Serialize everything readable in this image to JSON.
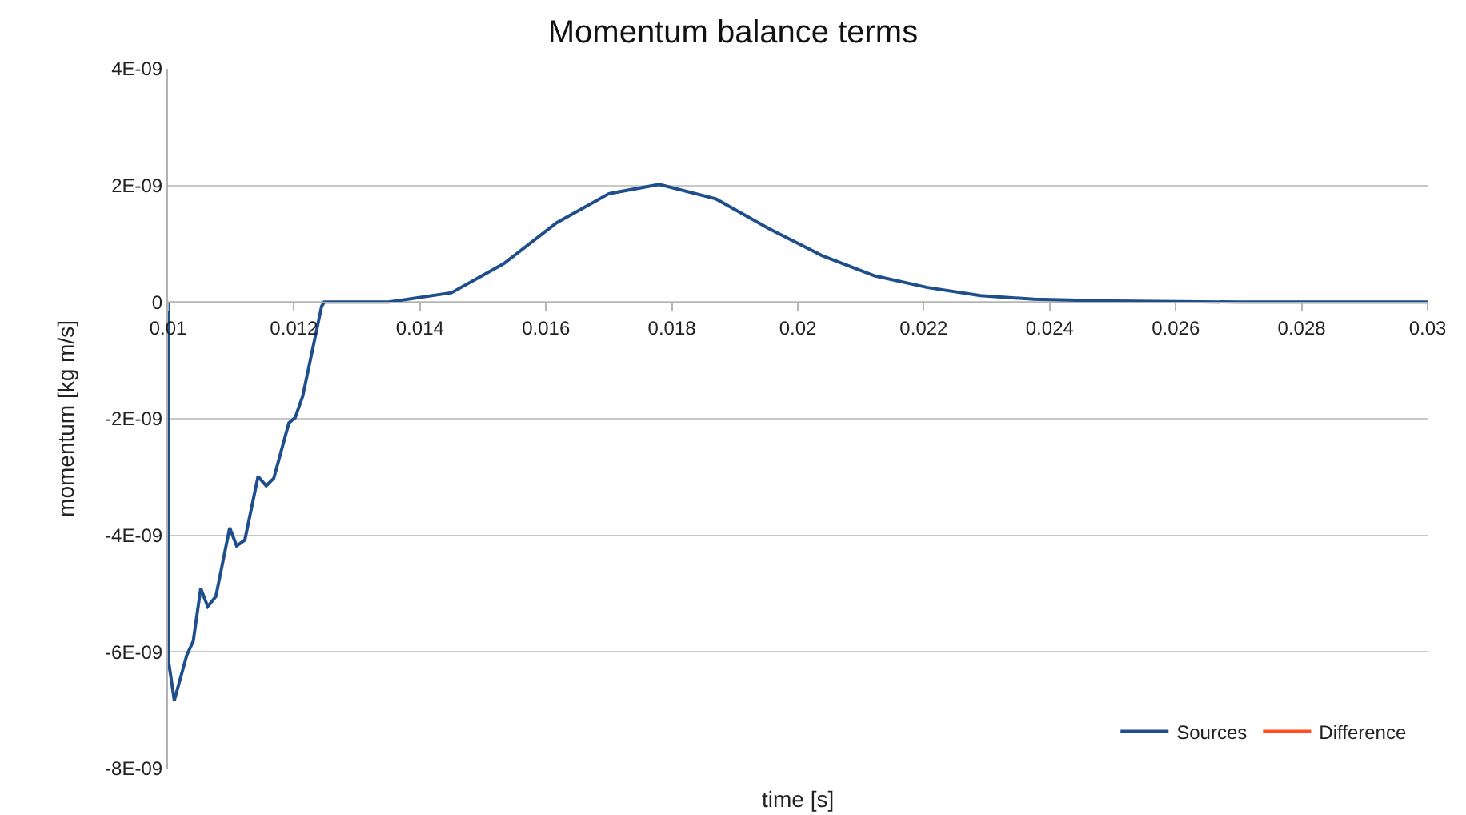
{
  "chart_data": {
    "type": "line",
    "title": "Momentum balance terms",
    "xlabel": "time [s]",
    "ylabel": "momentum [kg m/s]",
    "x": [
      0.01,
      0.01,
      0.0101,
      0.0103,
      0.0104,
      0.01052,
      0.01063,
      0.01076,
      0.01098,
      0.01109,
      0.01122,
      0.01143,
      0.01156,
      0.01168,
      0.01192,
      0.01202,
      0.01214,
      0.01244,
      0.01248,
      0.0135,
      0.0145,
      0.01533,
      0.01617,
      0.017,
      0.0178,
      0.0187,
      0.01954,
      0.02038,
      0.02122,
      0.02206,
      0.0229,
      0.02375,
      0.025,
      0.027,
      0.03
    ],
    "series": [
      {
        "name": "Sources",
        "color": "#1f4e8c",
        "values": [
          0,
          -6.1e-09,
          -6.83e-09,
          -6.05e-09,
          -5.82e-09,
          -4.91e-09,
          -5.22e-09,
          -5.05e-09,
          -3.87e-09,
          -4.18e-09,
          -4.08e-09,
          -2.99e-09,
          -3.15e-09,
          -3.02e-09,
          -2.07e-09,
          -1.98e-09,
          -1.61e-09,
          -7e-11,
          0,
          0,
          1.6e-10,
          6.6e-10,
          1.36e-09,
          1.86e-09,
          2.02e-09,
          1.77e-09,
          1.26e-09,
          8e-10,
          4.5e-10,
          2.5e-10,
          1.1e-10,
          5e-11,
          2e-11,
          0,
          0
        ]
      },
      {
        "name": "Difference",
        "color": "#ff4f1f",
        "values": [
          null,
          null,
          null,
          null,
          null,
          null,
          null,
          null,
          null,
          null,
          null,
          null,
          null,
          null,
          null,
          null,
          null,
          null,
          null,
          null,
          null,
          null,
          null,
          null,
          null,
          null,
          null,
          null,
          null,
          null,
          null,
          null,
          null,
          null,
          null
        ]
      }
    ],
    "xlim": [
      0.01,
      0.03
    ],
    "xticks": [
      0.01,
      0.012,
      0.014,
      0.016,
      0.018,
      0.02,
      0.022,
      0.024,
      0.026,
      0.028,
      0.03
    ],
    "ylim": [
      -8e-09,
      4e-09
    ],
    "yticks": [
      {
        "value": 4e-09,
        "label": "4E-09"
      },
      {
        "value": 2e-09,
        "label": "2E-09"
      },
      {
        "value": 0,
        "label": "0"
      },
      {
        "value": -2e-09,
        "label": "-2E-09"
      },
      {
        "value": -4e-09,
        "label": "-4E-09"
      },
      {
        "value": -6e-09,
        "label": "-6E-09"
      },
      {
        "value": -8e-09,
        "label": "-8E-09"
      }
    ],
    "grid": "y",
    "legend": "bottom right",
    "marker": "none",
    "line_style": "solid"
  }
}
